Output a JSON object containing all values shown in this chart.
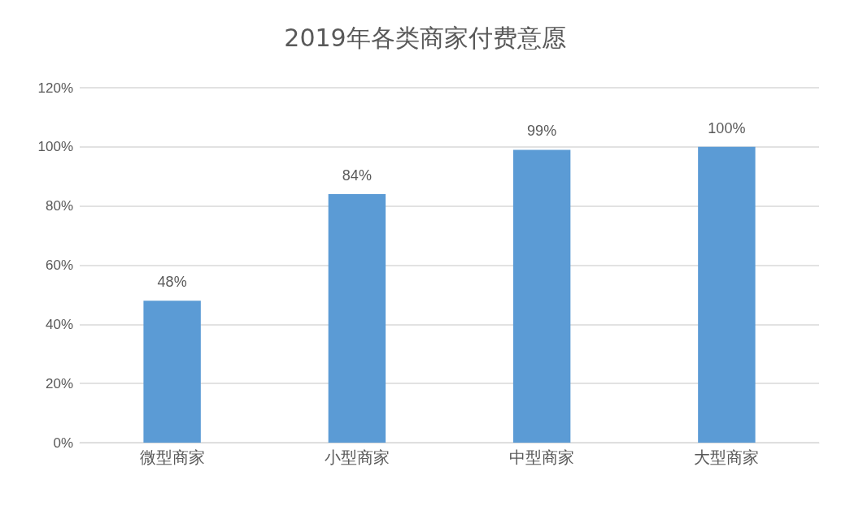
{
  "chart_data": {
    "type": "bar",
    "title": "2019年各类商家付费意愿",
    "categories": [
      "微型商家",
      "小型商家",
      "中型商家",
      "大型商家"
    ],
    "values": [
      48,
      84,
      99,
      100
    ],
    "color": "#5b9bd5",
    "value_labels": [
      "48%",
      "84%",
      "99%",
      "100%"
    ],
    "ylim": [
      0,
      120
    ],
    "yticks": [
      {
        "value": 0,
        "label": "0%"
      },
      {
        "value": 20,
        "label": "20%"
      },
      {
        "value": 40,
        "label": "40%"
      },
      {
        "value": 60,
        "label": "60%"
      },
      {
        "value": 80,
        "label": "80%"
      },
      {
        "value": 100,
        "label": "100%"
      },
      {
        "value": 120,
        "label": "120%"
      }
    ],
    "grid": "y"
  }
}
